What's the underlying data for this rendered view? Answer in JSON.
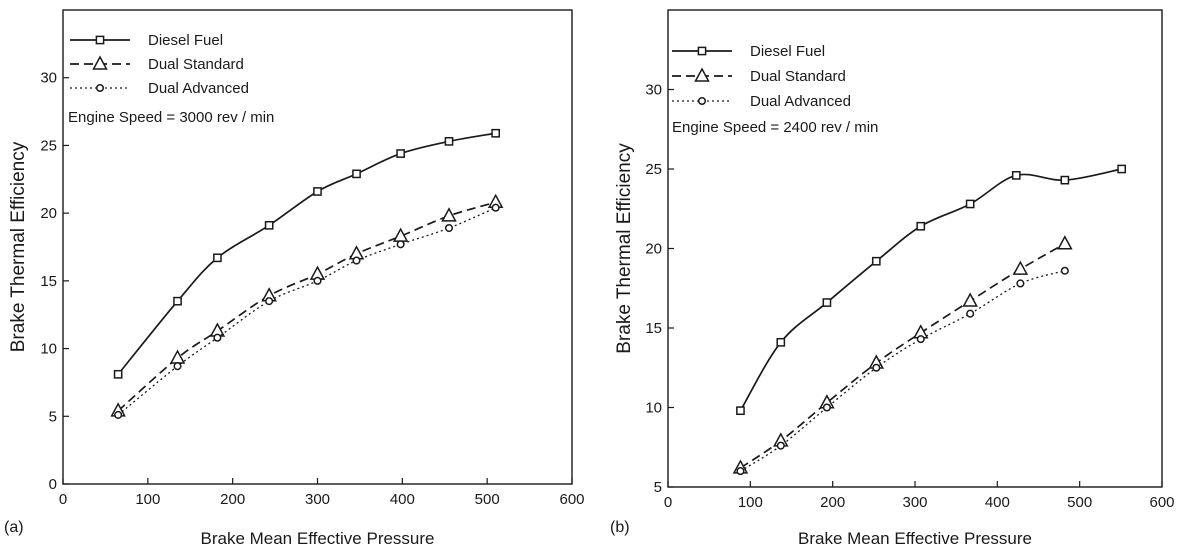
{
  "chart_data": [
    {
      "panel_label": "(a)",
      "type": "line",
      "xlabel": "Brake Mean Effective Pressure",
      "ylabel": "Brake Thermal Efficiency",
      "xlim": [
        0,
        600
      ],
      "ylim": [
        0,
        35
      ],
      "xticks": [
        0,
        100,
        200,
        300,
        400,
        500,
        600
      ],
      "yticks": [
        0,
        5,
        10,
        15,
        20,
        25,
        30
      ],
      "grid": false,
      "legend_position": "top-left",
      "annotation": "Engine Speed = 3000 rev / min",
      "series": [
        {
          "name": "Diesel Fuel",
          "marker": "square",
          "line": "solid",
          "x": [
            65,
            135,
            182,
            243,
            300,
            346,
            398,
            455,
            510
          ],
          "y": [
            8.1,
            13.5,
            16.7,
            19.1,
            21.6,
            22.9,
            24.4,
            25.3,
            25.9
          ]
        },
        {
          "name": "Dual Standard",
          "marker": "triangle",
          "line": "dashed",
          "x": [
            65,
            135,
            182,
            243,
            300,
            346,
            398,
            455,
            510
          ],
          "y": [
            5.4,
            9.3,
            11.3,
            13.9,
            15.5,
            17.0,
            18.3,
            19.8,
            20.8
          ]
        },
        {
          "name": "Dual Advanced",
          "marker": "circle",
          "line": "dotted",
          "x": [
            65,
            135,
            182,
            243,
            300,
            346,
            398,
            455,
            510
          ],
          "y": [
            5.1,
            8.7,
            10.8,
            13.5,
            15.0,
            16.5,
            17.7,
            18.9,
            20.4
          ]
        }
      ]
    },
    {
      "panel_label": "(b)",
      "type": "line",
      "xlabel": "Brake Mean Effective Pressure",
      "ylabel": "Brake Thermal Efficiency",
      "xlim": [
        0,
        600
      ],
      "ylim": [
        5,
        35
      ],
      "xticks": [
        0,
        100,
        200,
        300,
        400,
        500,
        600
      ],
      "yticks": [
        5,
        10,
        15,
        20,
        25,
        30
      ],
      "grid": false,
      "legend_position": "top-left",
      "annotation": "Engine Speed = 2400 rev / min",
      "series": [
        {
          "name": "Diesel Fuel",
          "marker": "square",
          "line": "solid",
          "x": [
            88,
            137,
            193,
            253,
            307,
            367,
            423,
            482,
            551
          ],
          "y": [
            9.8,
            14.1,
            16.6,
            19.2,
            21.4,
            22.8,
            24.6,
            24.3,
            25.0
          ]
        },
        {
          "name": "Dual Standard",
          "marker": "triangle",
          "line": "dashed",
          "x": [
            88,
            137,
            193,
            253,
            307,
            367,
            428,
            482
          ],
          "y": [
            6.2,
            7.9,
            10.3,
            12.8,
            14.7,
            16.7,
            18.7,
            20.3
          ]
        },
        {
          "name": "Dual Advanced",
          "marker": "circle",
          "line": "dotted",
          "x": [
            88,
            137,
            193,
            253,
            307,
            367,
            428,
            482
          ],
          "y": [
            6.0,
            7.6,
            10.0,
            12.5,
            14.3,
            15.9,
            17.8,
            18.6
          ]
        }
      ]
    }
  ]
}
